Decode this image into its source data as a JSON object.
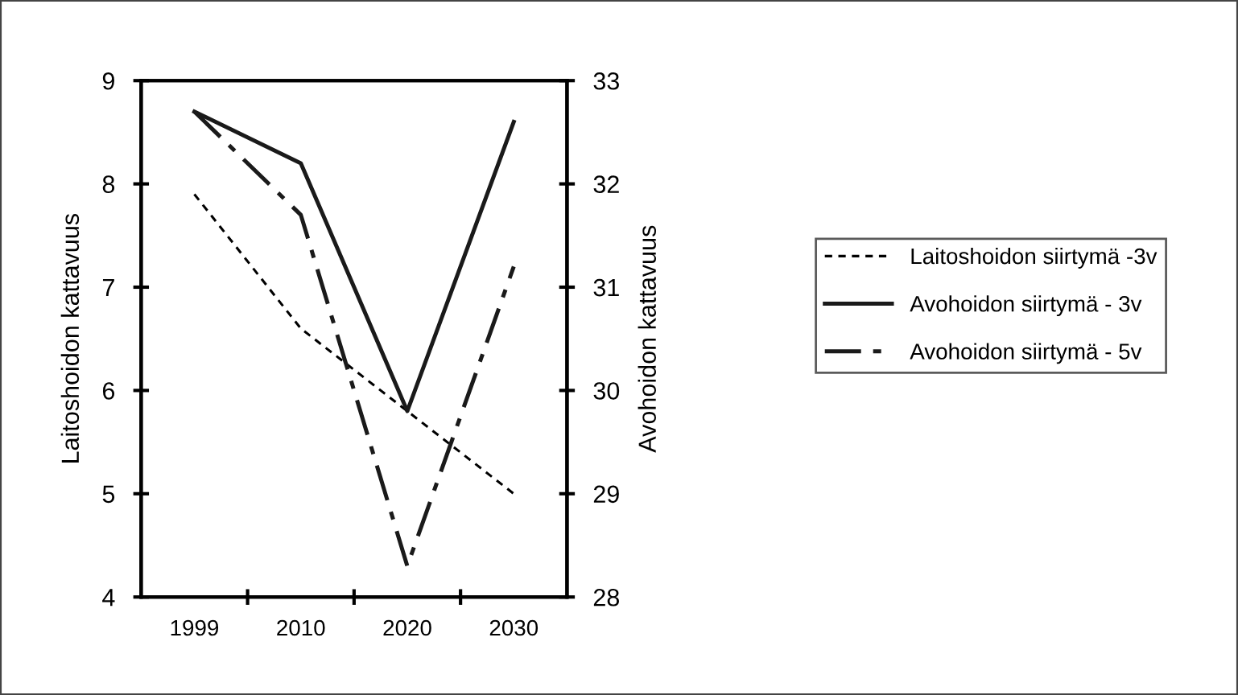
{
  "chart_data": {
    "type": "line",
    "ylabel": "Laitoshoidon kattavuus",
    "y2label": "Avohoidon kattavuus",
    "categories": [
      "1999",
      "2010",
      "2020",
      "2030"
    ],
    "series": [
      {
        "name": "Laitoshoidon siirtymä -3v",
        "color": "#000000",
        "line_style": "dashed",
        "values": [
          7.9,
          6.6,
          5.8,
          5.0
        ]
      },
      {
        "name": "Avohoidon siirtymä - 3v",
        "color": "#1a1a1a",
        "line_style": "solid",
        "axis": "y2",
        "values": [
          32.7,
          32.2,
          29.8,
          32.6
        ]
      },
      {
        "name": "Avohoidon siirtymä - 5v",
        "color": "#1a1a1a",
        "line_style": "dashdot",
        "axis": "y2",
        "values": [
          32.7,
          31.7,
          28.3,
          31.2
        ]
      }
    ],
    "ylim": [
      4,
      9
    ],
    "yticks": [
      4,
      5,
      6,
      7,
      8,
      9
    ],
    "y2lim": [
      28,
      33
    ],
    "y2ticks": [
      28,
      29,
      30,
      31,
      32,
      33
    ],
    "grid": false,
    "legend": "right",
    "marker": "none"
  }
}
